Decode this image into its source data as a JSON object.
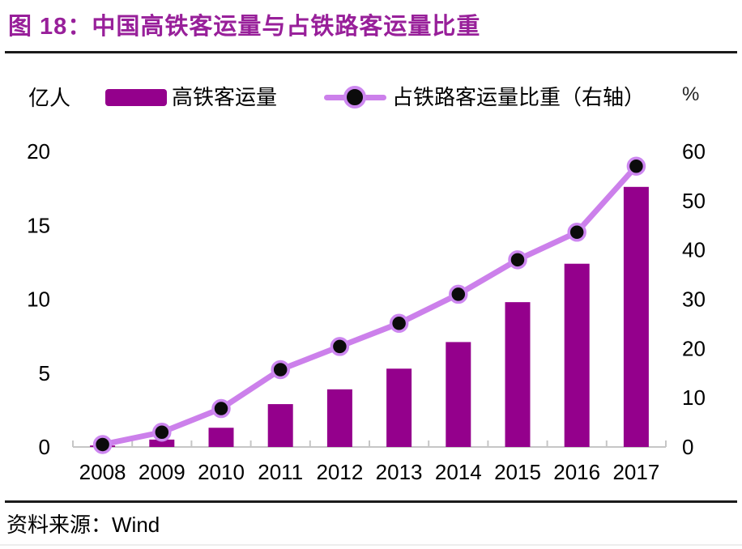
{
  "header": {
    "title": "图 18：中国高铁客运量与占铁路客运量比重"
  },
  "legend": {
    "left_unit": "亿人",
    "bar_label": "高铁客运量",
    "line_label": "占铁路客运量比重（右轴）",
    "right_unit": "%"
  },
  "footer": {
    "source_label": "资料来源：",
    "source_value": "Wind"
  },
  "colors": {
    "title": "#98209A",
    "bar": "#94008C",
    "line": "#CC80EB",
    "marker_fill": "#0B0B0B",
    "marker_ring": "#CD87F0",
    "axis": "#C6C6C6",
    "separator": "#1B1B1B"
  },
  "chart_data": {
    "type": "bar",
    "title": "中国高铁客运量与占铁路客运量比重",
    "categories": [
      "2008",
      "2009",
      "2010",
      "2011",
      "2012",
      "2013",
      "2014",
      "2015",
      "2016",
      "2017"
    ],
    "series": [
      {
        "name": "高铁客运量",
        "type": "bar",
        "axis": "left",
        "unit": "亿人",
        "values": [
          0.1,
          0.5,
          1.3,
          2.9,
          3.9,
          5.3,
          7.1,
          9.8,
          12.4,
          17.6
        ]
      },
      {
        "name": "占铁路客运量比重（右轴）",
        "type": "line",
        "axis": "right",
        "unit": "%",
        "values": [
          0.5,
          3.0,
          7.8,
          15.7,
          20.4,
          25.1,
          31.0,
          38.0,
          43.6,
          57.0
        ]
      }
    ],
    "left_axis": {
      "label": "亿人",
      "min": 0,
      "max": 20,
      "step": 5,
      "ticks": [
        0,
        5,
        10,
        15,
        20
      ]
    },
    "right_axis": {
      "label": "%",
      "min": 0,
      "max": 60,
      "step": 10,
      "ticks": [
        0,
        10,
        20,
        30,
        40,
        50,
        60
      ]
    },
    "grid": false,
    "legend_position": "top"
  }
}
